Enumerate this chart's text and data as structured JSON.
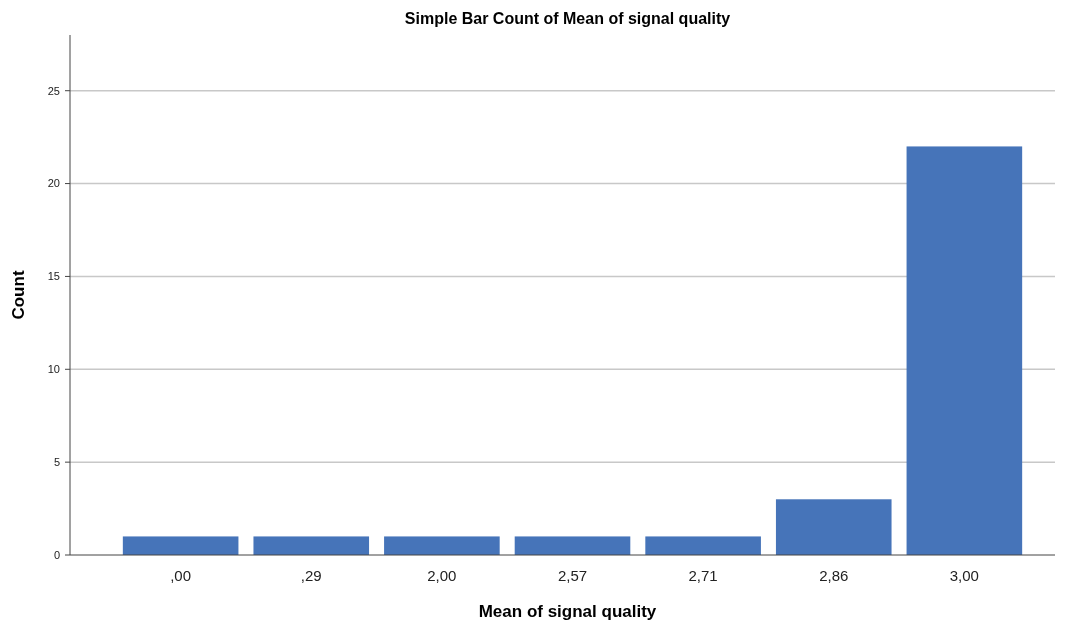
{
  "chart_data": {
    "type": "bar",
    "title": "Simple Bar Count of Mean of signal quality",
    "xlabel": "Mean of signal quality",
    "ylabel": "Count",
    "categories": [
      ",00",
      ",29",
      "2,00",
      "2,57",
      "2,71",
      "2,86",
      "3,00"
    ],
    "values": [
      1,
      1,
      1,
      1,
      1,
      3,
      22
    ],
    "color": "#4674b9",
    "ylim": [
      0,
      28
    ],
    "yticks": [
      0,
      5,
      10,
      15,
      20,
      25
    ],
    "grid": "y"
  }
}
